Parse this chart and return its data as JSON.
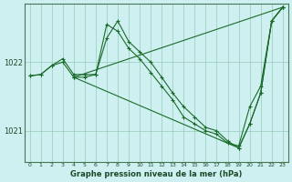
{
  "title": "Graphe pression niveau de la mer (hPa)",
  "xlabel_ticks": [
    0,
    1,
    2,
    3,
    4,
    5,
    6,
    7,
    8,
    9,
    10,
    11,
    12,
    13,
    14,
    15,
    16,
    17,
    18,
    19,
    20,
    21,
    22,
    23
  ],
  "ylim": [
    1020.55,
    1022.85
  ],
  "yticks": [
    1021,
    1022
  ],
  "background_color": "#cff0f0",
  "grid_color": "#99ccbb",
  "line_color": "#1a6b2a",
  "series": [
    {
      "x": [
        0,
        1,
        2,
        3,
        4,
        5,
        6,
        7,
        8,
        9,
        10,
        11,
        12,
        13,
        14,
        15,
        16,
        17,
        18,
        19,
        20,
        21,
        22,
        23
      ],
      "y": [
        1021.8,
        1021.82,
        1021.95,
        1022.05,
        1021.82,
        1021.82,
        1021.82,
        1022.35,
        1022.6,
        1022.3,
        1022.15,
        1022.0,
        1021.78,
        1021.55,
        1021.35,
        1021.2,
        1021.05,
        1021.0,
        1020.85,
        1020.75,
        1021.1,
        1021.55,
        1022.6,
        1022.8
      ]
    },
    {
      "x": [
        0,
        1,
        2,
        3,
        4,
        5,
        6,
        7,
        8,
        9,
        10,
        11,
        12,
        13,
        14,
        15,
        16,
        17,
        18,
        19,
        20,
        21,
        22,
        23
      ],
      "y": [
        1021.8,
        1021.82,
        1021.95,
        1022.0,
        1021.78,
        1021.78,
        1021.82,
        1022.55,
        1022.45,
        1022.2,
        1022.05,
        1021.85,
        1021.65,
        1021.45,
        1021.2,
        1021.1,
        1021.0,
        1020.95,
        1020.82,
        1020.78,
        1021.35,
        1021.65,
        1022.6,
        1022.8
      ]
    },
    {
      "x": [
        4,
        23
      ],
      "y": [
        1021.78,
        1022.8
      ]
    },
    {
      "x": [
        4,
        19,
        20,
        21,
        22,
        23
      ],
      "y": [
        1021.78,
        1020.75,
        1021.1,
        1021.55,
        1022.6,
        1022.8
      ]
    }
  ]
}
